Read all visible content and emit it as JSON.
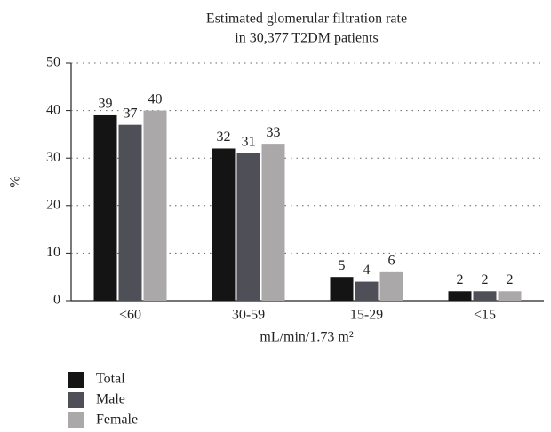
{
  "chart_data": {
    "type": "bar",
    "title": [
      "Estimated glomerular filtration rate",
      "in 30,377 T2DM patients"
    ],
    "x_label": "mL/min/1.73 m²",
    "y_label": "%",
    "categories": [
      "<60",
      "30-59",
      "15-29",
      "<15"
    ],
    "series": [
      {
        "name": "Total",
        "color": "#141414",
        "values": [
          39,
          32,
          5,
          2
        ]
      },
      {
        "name": "Male",
        "color": "#4f4f57",
        "values": [
          37,
          31,
          4,
          2
        ]
      },
      {
        "name": "Female",
        "color": "#aaa8a8",
        "values": [
          40,
          33,
          6,
          2
        ]
      }
    ],
    "ylim": [
      0,
      50
    ],
    "yticks": [
      0,
      10,
      20,
      30,
      40,
      50
    ],
    "grid": true,
    "legend": "bottom-left"
  }
}
